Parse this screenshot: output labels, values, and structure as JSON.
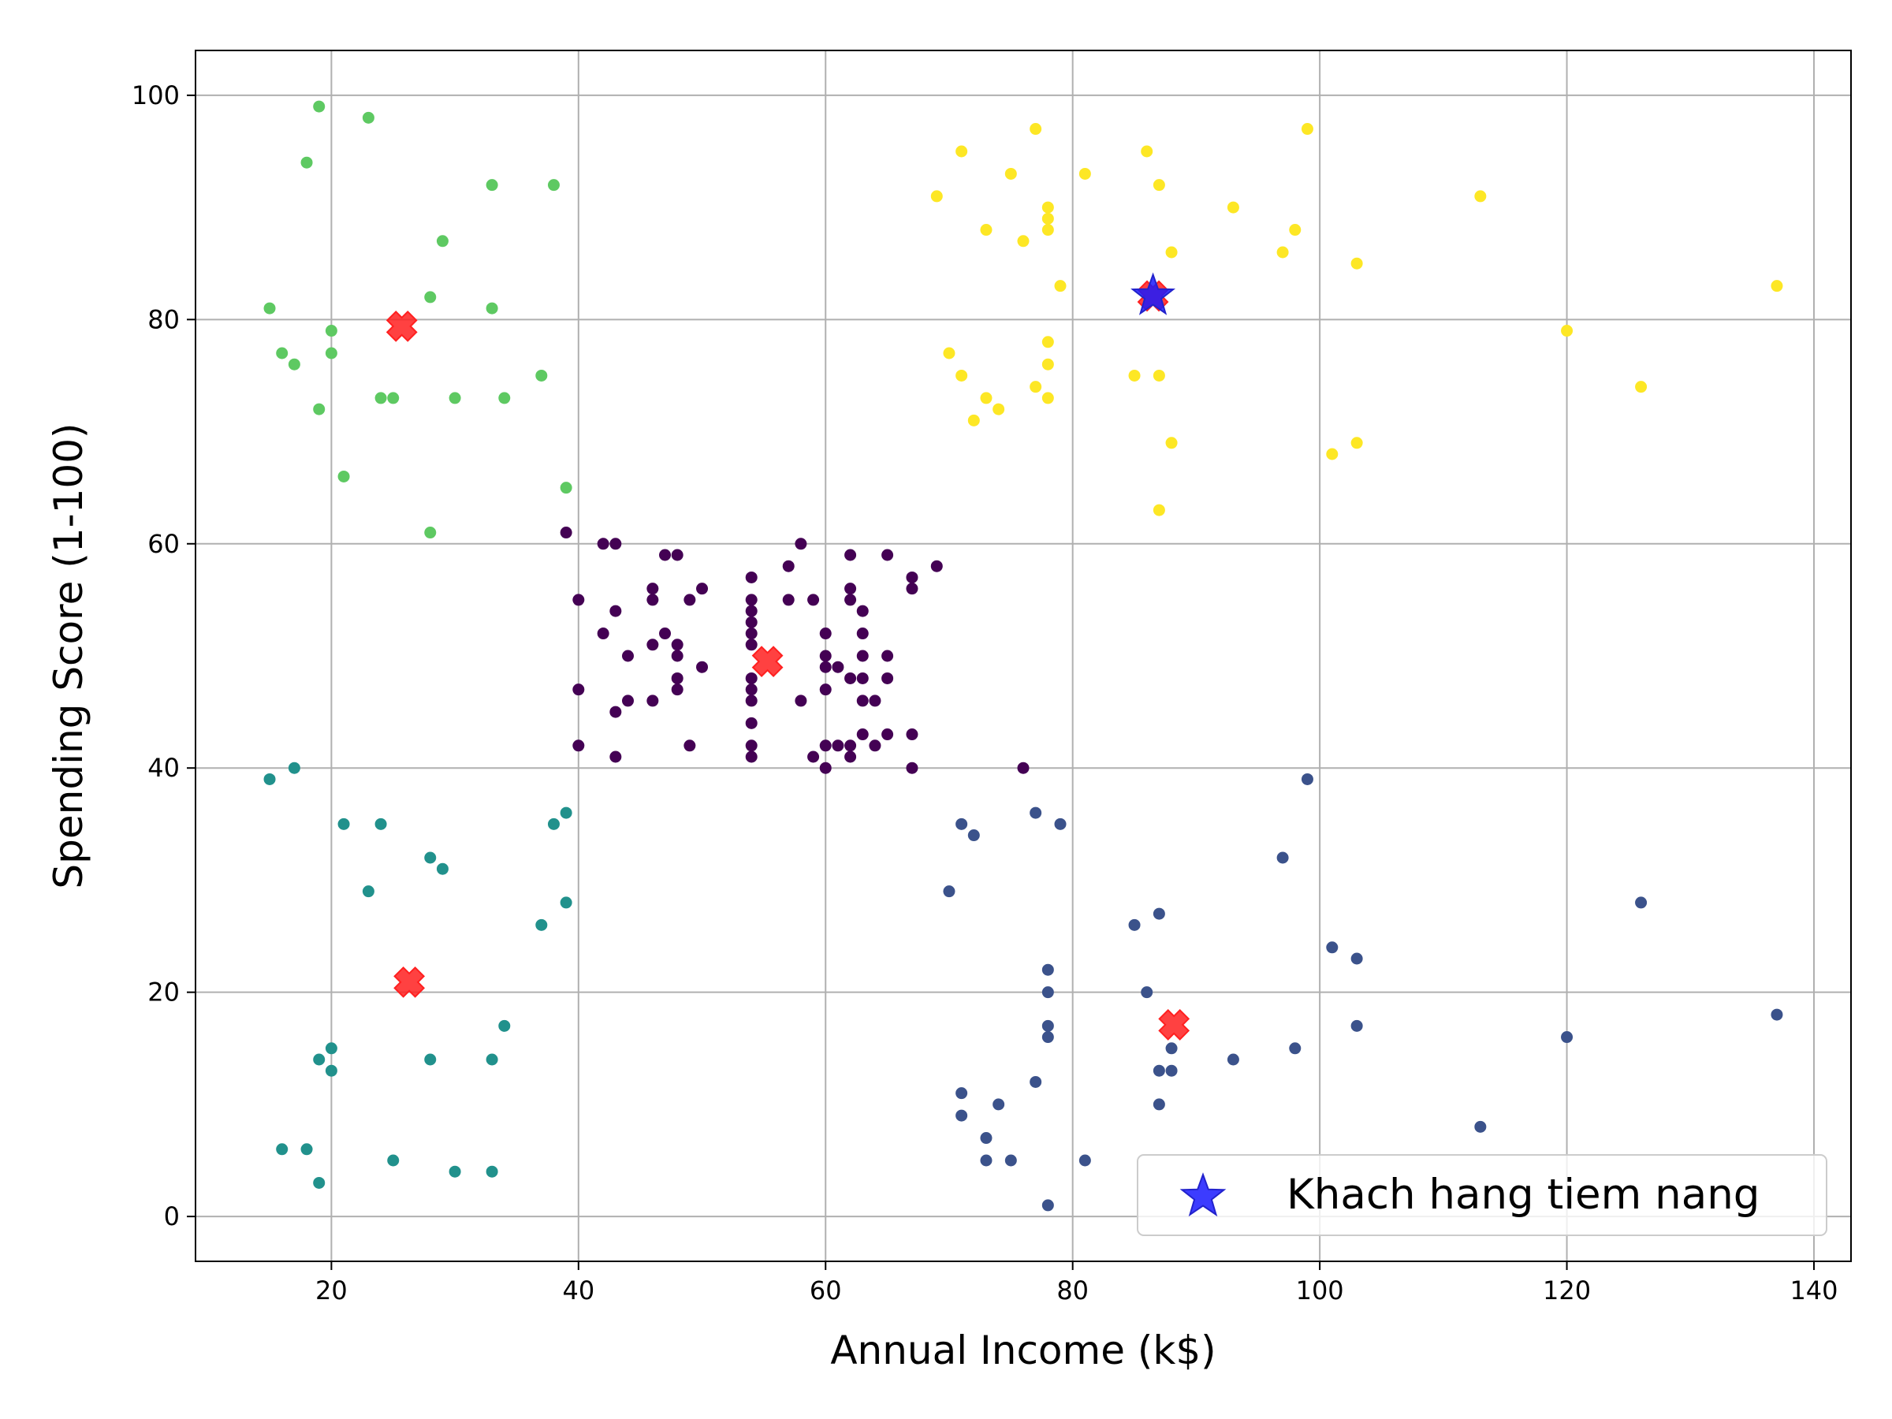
{
  "chart_data": {
    "type": "scatter",
    "title": "",
    "xlabel": "Annual Income (k$)",
    "ylabel": "Spending Score (1-100)",
    "xlim": [
      9,
      143
    ],
    "ylim": [
      -4,
      104
    ],
    "xticks": [
      20,
      40,
      60,
      80,
      100,
      120,
      140
    ],
    "yticks": [
      0,
      20,
      40,
      60,
      80,
      100
    ],
    "grid": true,
    "legend": {
      "position": "lower-right",
      "entries": [
        "Khach hang tiem nang"
      ]
    },
    "colors": {
      "cluster_0": "#440154",
      "cluster_1": "#3b528b",
      "cluster_2": "#21918c",
      "cluster_3": "#5ec962",
      "cluster_4": "#fde725",
      "centroid": "#ff2020",
      "highlight": "#1a1aff"
    },
    "series": [
      {
        "cluster": "cluster_0",
        "points": [
          [
            39,
            61
          ],
          [
            40,
            55
          ],
          [
            40,
            47
          ],
          [
            40,
            42
          ],
          [
            42,
            52
          ],
          [
            42,
            60
          ],
          [
            43,
            60
          ],
          [
            43,
            54
          ],
          [
            43,
            45
          ],
          [
            43,
            41
          ],
          [
            44,
            50
          ],
          [
            44,
            46
          ],
          [
            46,
            56
          ],
          [
            46,
            55
          ],
          [
            46,
            51
          ],
          [
            46,
            46
          ],
          [
            47,
            59
          ],
          [
            47,
            52
          ],
          [
            48,
            59
          ],
          [
            48,
            51
          ],
          [
            48,
            50
          ],
          [
            48,
            48
          ],
          [
            48,
            47
          ],
          [
            49,
            55
          ],
          [
            49,
            42
          ],
          [
            50,
            56
          ],
          [
            50,
            49
          ],
          [
            54,
            57
          ],
          [
            54,
            55
          ],
          [
            54,
            54
          ],
          [
            54,
            53
          ],
          [
            54,
            52
          ],
          [
            54,
            51
          ],
          [
            54,
            48
          ],
          [
            54,
            47
          ],
          [
            54,
            46
          ],
          [
            54,
            44
          ],
          [
            54,
            42
          ],
          [
            54,
            41
          ],
          [
            57,
            58
          ],
          [
            57,
            55
          ],
          [
            58,
            60
          ],
          [
            58,
            46
          ],
          [
            59,
            55
          ],
          [
            59,
            41
          ],
          [
            60,
            52
          ],
          [
            60,
            50
          ],
          [
            60,
            49
          ],
          [
            60,
            47
          ],
          [
            60,
            42
          ],
          [
            60,
            40
          ],
          [
            61,
            49
          ],
          [
            61,
            42
          ],
          [
            62,
            59
          ],
          [
            62,
            56
          ],
          [
            62,
            55
          ],
          [
            62,
            48
          ],
          [
            62,
            42
          ],
          [
            62,
            41
          ],
          [
            63,
            54
          ],
          [
            63,
            52
          ],
          [
            63,
            50
          ],
          [
            63,
            48
          ],
          [
            63,
            46
          ],
          [
            63,
            43
          ],
          [
            64,
            46
          ],
          [
            64,
            42
          ],
          [
            65,
            59
          ],
          [
            65,
            50
          ],
          [
            65,
            48
          ],
          [
            65,
            43
          ],
          [
            67,
            57
          ],
          [
            67,
            56
          ],
          [
            67,
            43
          ],
          [
            67,
            40
          ],
          [
            69,
            58
          ],
          [
            76,
            40
          ]
        ]
      },
      {
        "cluster": "cluster_1",
        "points": [
          [
            70,
            29
          ],
          [
            71,
            35
          ],
          [
            71,
            11
          ],
          [
            71,
            9
          ],
          [
            72,
            34
          ],
          [
            73,
            7
          ],
          [
            73,
            5
          ],
          [
            74,
            10
          ],
          [
            75,
            5
          ],
          [
            77,
            36
          ],
          [
            77,
            12
          ],
          [
            78,
            22
          ],
          [
            78,
            20
          ],
          [
            78,
            17
          ],
          [
            78,
            16
          ],
          [
            78,
            1
          ],
          [
            79,
            35
          ],
          [
            81,
            5
          ],
          [
            85,
            26
          ],
          [
            86,
            20
          ],
          [
            87,
            27
          ],
          [
            87,
            13
          ],
          [
            87,
            10
          ],
          [
            88,
            15
          ],
          [
            88,
            13
          ],
          [
            93,
            14
          ],
          [
            97,
            32
          ],
          [
            98,
            15
          ],
          [
            99,
            39
          ],
          [
            101,
            24
          ],
          [
            103,
            23
          ],
          [
            103,
            17
          ],
          [
            113,
            8
          ],
          [
            120,
            16
          ],
          [
            126,
            28
          ],
          [
            137,
            18
          ]
        ]
      },
      {
        "cluster": "cluster_2",
        "points": [
          [
            15,
            39
          ],
          [
            16,
            6
          ],
          [
            17,
            40
          ],
          [
            18,
            6
          ],
          [
            19,
            14
          ],
          [
            19,
            3
          ],
          [
            20,
            15
          ],
          [
            20,
            13
          ],
          [
            21,
            35
          ],
          [
            23,
            29
          ],
          [
            24,
            35
          ],
          [
            25,
            5
          ],
          [
            28,
            32
          ],
          [
            28,
            14
          ],
          [
            29,
            31
          ],
          [
            30,
            4
          ],
          [
            33,
            14
          ],
          [
            33,
            4
          ],
          [
            34,
            17
          ],
          [
            37,
            26
          ],
          [
            38,
            35
          ],
          [
            39,
            36
          ],
          [
            39,
            28
          ]
        ]
      },
      {
        "cluster": "cluster_3",
        "points": [
          [
            15,
            81
          ],
          [
            16,
            77
          ],
          [
            17,
            76
          ],
          [
            18,
            94
          ],
          [
            19,
            99
          ],
          [
            19,
            72
          ],
          [
            20,
            79
          ],
          [
            20,
            77
          ],
          [
            21,
            66
          ],
          [
            23,
            98
          ],
          [
            24,
            73
          ],
          [
            25,
            73
          ],
          [
            28,
            82
          ],
          [
            28,
            61
          ],
          [
            29,
            87
          ],
          [
            30,
            73
          ],
          [
            33,
            92
          ],
          [
            33,
            81
          ],
          [
            34,
            73
          ],
          [
            37,
            75
          ],
          [
            38,
            92
          ],
          [
            39,
            65
          ]
        ]
      },
      {
        "cluster": "cluster_4",
        "points": [
          [
            69,
            91
          ],
          [
            70,
            77
          ],
          [
            71,
            95
          ],
          [
            71,
            75
          ],
          [
            72,
            71
          ],
          [
            73,
            88
          ],
          [
            73,
            73
          ],
          [
            74,
            72
          ],
          [
            75,
            93
          ],
          [
            76,
            87
          ],
          [
            77,
            97
          ],
          [
            77,
            74
          ],
          [
            78,
            90
          ],
          [
            78,
            89
          ],
          [
            78,
            88
          ],
          [
            78,
            78
          ],
          [
            78,
            76
          ],
          [
            78,
            73
          ],
          [
            79,
            83
          ],
          [
            81,
            93
          ],
          [
            85,
            75
          ],
          [
            86,
            95
          ],
          [
            87,
            92
          ],
          [
            87,
            75
          ],
          [
            87,
            63
          ],
          [
            88,
            86
          ],
          [
            88,
            69
          ],
          [
            93,
            90
          ],
          [
            97,
            86
          ],
          [
            98,
            88
          ],
          [
            99,
            97
          ],
          [
            101,
            68
          ],
          [
            103,
            85
          ],
          [
            103,
            69
          ],
          [
            113,
            91
          ],
          [
            120,
            79
          ],
          [
            126,
            74
          ],
          [
            137,
            83
          ]
        ]
      }
    ],
    "centroids": [
      [
        55.3,
        49.5
      ],
      [
        88.2,
        17.1
      ],
      [
        26.3,
        20.9
      ],
      [
        25.7,
        79.4
      ],
      [
        86.5,
        82.1
      ]
    ],
    "highlight": {
      "label": "Khach hang tiem nang",
      "point": [
        86.5,
        82.1
      ]
    }
  }
}
